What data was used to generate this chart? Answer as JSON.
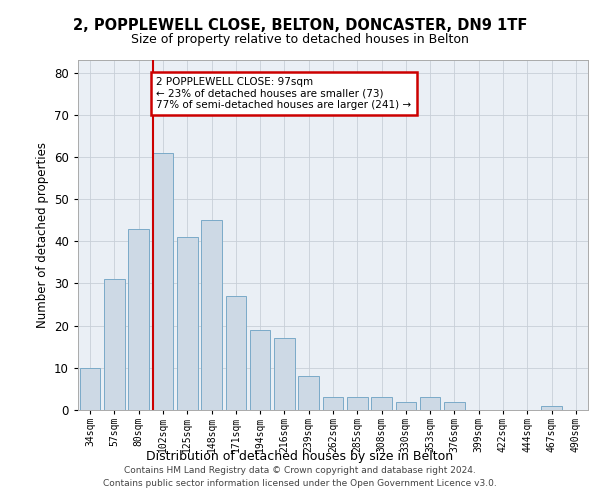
{
  "title": "2, POPPLEWELL CLOSE, BELTON, DONCASTER, DN9 1TF",
  "subtitle": "Size of property relative to detached houses in Belton",
  "xlabel": "Distribution of detached houses by size in Belton",
  "ylabel": "Number of detached properties",
  "bar_labels": [
    "34sqm",
    "57sqm",
    "80sqm",
    "102sqm",
    "125sqm",
    "148sqm",
    "171sqm",
    "194sqm",
    "216sqm",
    "239sqm",
    "262sqm",
    "285sqm",
    "308sqm",
    "330sqm",
    "353sqm",
    "376sqm",
    "399sqm",
    "422sqm",
    "444sqm",
    "467sqm",
    "490sqm"
  ],
  "bar_values": [
    10,
    31,
    43,
    61,
    41,
    45,
    27,
    19,
    17,
    8,
    3,
    3,
    3,
    2,
    3,
    2,
    0,
    0,
    0,
    1,
    0
  ],
  "bar_color": "#cdd9e5",
  "bar_edge_color": "#7aaac8",
  "grid_color": "#c8cfd8",
  "background_color": "#eaeff5",
  "vline_color": "#cc0000",
  "annotation_text": "2 POPPLEWELL CLOSE: 97sqm\n← 23% of detached houses are smaller (73)\n77% of semi-detached houses are larger (241) →",
  "annotation_box_color": "#ffffff",
  "annotation_box_edge": "#cc0000",
  "ylim": [
    0,
    83
  ],
  "yticks": [
    0,
    10,
    20,
    30,
    40,
    50,
    60,
    70,
    80
  ],
  "footer_line1": "Contains HM Land Registry data © Crown copyright and database right 2024.",
  "footer_line2": "Contains public sector information licensed under the Open Government Licence v3.0."
}
